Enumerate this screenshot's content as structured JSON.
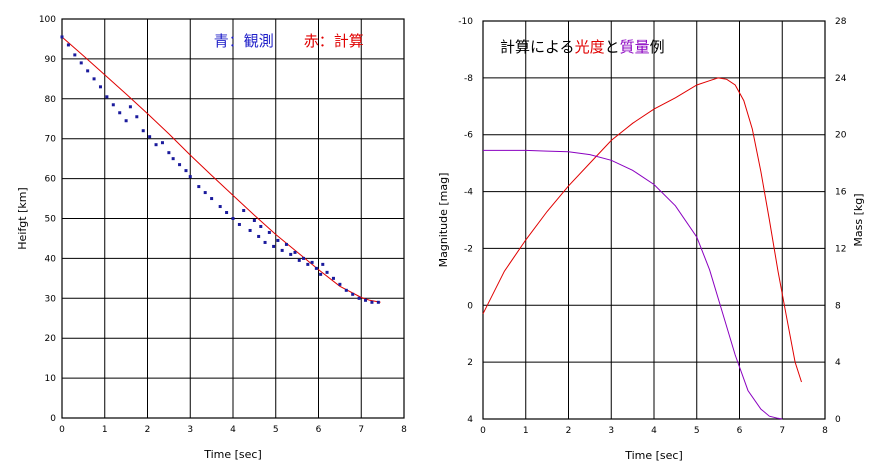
{
  "chart_data": [
    {
      "type": "scatter",
      "xlabel": "Time [sec]",
      "ylabel": "Heifgt [km]",
      "xlim": [
        0,
        8
      ],
      "ylim": [
        0,
        100
      ],
      "x_ticks": [
        "0",
        "1",
        "2",
        "3",
        "4",
        "5",
        "6",
        "7",
        "8"
      ],
      "y_ticks": [
        "0",
        "10",
        "20",
        "30",
        "40",
        "50",
        "60",
        "70",
        "80",
        "90",
        "100"
      ],
      "grid": true,
      "legend": {
        "position": "top-right",
        "observed_label": "青：観測",
        "computed_label": "赤：計算",
        "observed_color": "#1e1ec8",
        "computed_color": "#e00000"
      },
      "series": [
        {
          "role": "observed",
          "color": "#1a1a9c",
          "x": [
            0.0,
            0.15,
            0.3,
            0.45,
            0.6,
            0.75,
            0.9,
            1.05,
            1.2,
            1.35,
            1.5,
            1.6,
            1.75,
            1.9,
            2.05,
            2.2,
            2.35,
            2.5,
            2.6,
            2.75,
            2.9,
            3.0,
            3.2,
            3.35,
            3.5,
            3.7,
            3.85,
            4.0,
            4.15,
            4.25,
            4.4,
            4.5,
            4.6,
            4.65,
            4.75,
            4.85,
            4.95,
            5.05,
            5.15,
            5.25,
            5.35,
            5.45,
            5.55,
            5.65,
            5.75,
            5.85,
            5.95,
            6.05,
            6.1,
            6.2,
            6.35,
            6.5,
            6.65,
            6.8,
            6.95,
            7.1,
            7.25,
            7.4
          ],
          "y": [
            95.5,
            93.5,
            91.0,
            89.0,
            87.0,
            85.0,
            83.0,
            80.5,
            78.5,
            76.5,
            74.5,
            78.0,
            75.5,
            72.0,
            70.5,
            68.5,
            69.0,
            66.5,
            65.0,
            63.5,
            62.0,
            60.5,
            58.0,
            56.5,
            55.0,
            53.0,
            51.5,
            50.0,
            48.5,
            52.0,
            47.0,
            49.5,
            45.5,
            48.0,
            44.0,
            46.5,
            43.0,
            44.5,
            42.0,
            43.5,
            41.0,
            41.5,
            39.5,
            40.0,
            38.5,
            39.0,
            37.5,
            36.0,
            38.5,
            36.5,
            35.0,
            33.5,
            32.0,
            31.0,
            30.0,
            29.5,
            29.0,
            29.0
          ]
        },
        {
          "role": "computed",
          "color": "#e00000",
          "x": [
            0,
            0.5,
            1.0,
            1.5,
            2.0,
            2.5,
            3.0,
            3.5,
            4.0,
            4.5,
            5.0,
            5.5,
            6.0,
            6.5,
            7.0,
            7.2,
            7.45
          ],
          "y": [
            95.5,
            90.8,
            86.0,
            81.2,
            76.3,
            71.2,
            65.9,
            60.8,
            55.8,
            50.8,
            46.0,
            41.6,
            37.2,
            33.0,
            30.2,
            29.5,
            29.0
          ]
        }
      ]
    },
    {
      "type": "line",
      "title_parts": [
        "計算による",
        "光度",
        "と",
        "質量",
        "例"
      ],
      "title_colors": [
        "#000000",
        "#e00000",
        "#000000",
        "#8a00c0",
        "#000000"
      ],
      "xlabel": "Time [sec]",
      "ylabel_left": "Magnitude [mag]",
      "ylabel_right": "Mass [kg]",
      "xlim": [
        0,
        8
      ],
      "ylim_left": [
        4,
        -10
      ],
      "ylim_right": [
        0,
        28
      ],
      "x_ticks": [
        "0",
        "1",
        "2",
        "3",
        "4",
        "5",
        "6",
        "7",
        "8"
      ],
      "y_ticks_left": [
        "-10",
        "-8",
        "-6",
        "-4",
        "-2",
        "0",
        "2",
        "4"
      ],
      "y_ticks_right": [
        "28",
        "24",
        "20",
        "16",
        "12",
        "8",
        "4",
        "0"
      ],
      "grid": true,
      "series": [
        {
          "role": "magnitude",
          "axis": "left",
          "color": "#e00000",
          "x": [
            0,
            0.5,
            1.0,
            1.5,
            2.0,
            2.5,
            3.0,
            3.5,
            4.0,
            4.5,
            5.0,
            5.3,
            5.5,
            5.7,
            5.9,
            6.1,
            6.3,
            6.5,
            6.7,
            6.9,
            7.1,
            7.3,
            7.45
          ],
          "y": [
            0.3,
            -1.2,
            -2.3,
            -3.3,
            -4.2,
            -5.0,
            -5.8,
            -6.4,
            -6.9,
            -7.3,
            -7.75,
            -7.9,
            -8.0,
            -7.95,
            -7.75,
            -7.2,
            -6.2,
            -4.7,
            -3.0,
            -1.2,
            0.4,
            2.0,
            2.7
          ]
        },
        {
          "role": "mass",
          "axis": "right",
          "color": "#8a00c0",
          "x": [
            0,
            0.5,
            1.0,
            1.5,
            2.0,
            2.5,
            3.0,
            3.5,
            4.0,
            4.5,
            5.0,
            5.3,
            5.6,
            5.9,
            6.2,
            6.5,
            6.7,
            6.9,
            7.0
          ],
          "y": [
            18.9,
            18.9,
            18.9,
            18.85,
            18.8,
            18.6,
            18.2,
            17.5,
            16.5,
            15.0,
            12.8,
            10.5,
            7.5,
            4.5,
            2.0,
            0.7,
            0.2,
            0.05,
            0.0
          ]
        }
      ]
    }
  ]
}
